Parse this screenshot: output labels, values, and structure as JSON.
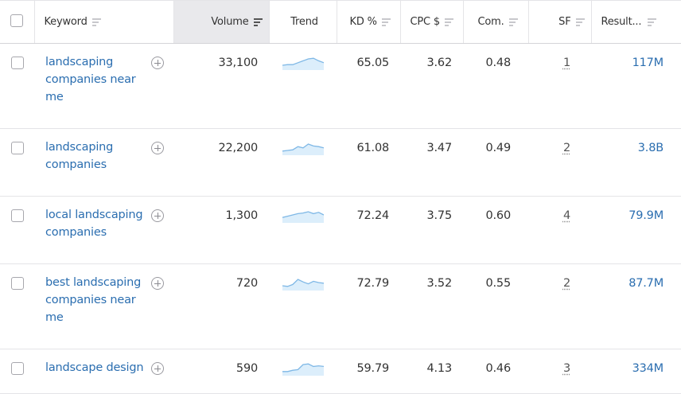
{
  "columns": {
    "keyword": "Keyword",
    "volume": "Volume",
    "trend": "Trend",
    "kd": "KD %",
    "cpc": "CPC $",
    "com": "Com.",
    "sf": "SF",
    "results": "Result..."
  },
  "rows": [
    {
      "keyword": "landscaping companies near me",
      "volume": "33,100",
      "kd": "65.05",
      "cpc": "3.62",
      "com": "0.48",
      "sf": "1",
      "results": "117M",
      "trend": [
        0.25,
        0.3,
        0.3,
        0.45,
        0.6,
        0.75,
        0.8,
        0.6,
        0.45
      ]
    },
    {
      "keyword": "landscaping companies",
      "volume": "22,200",
      "kd": "61.08",
      "cpc": "3.47",
      "com": "0.49",
      "sf": "2",
      "results": "3.8B",
      "trend": [
        0.2,
        0.25,
        0.3,
        0.55,
        0.45,
        0.75,
        0.6,
        0.55,
        0.45
      ]
    },
    {
      "keyword": "local landscaping companies",
      "volume": "1,300",
      "kd": "72.24",
      "cpc": "3.75",
      "com": "0.60",
      "sf": "4",
      "results": "79.9M",
      "trend": [
        0.3,
        0.4,
        0.5,
        0.6,
        0.65,
        0.75,
        0.6,
        0.7,
        0.5
      ]
    },
    {
      "keyword": "best landscaping companies near me",
      "volume": "720",
      "kd": "72.79",
      "cpc": "3.52",
      "com": "0.55",
      "sf": "2",
      "results": "87.7M",
      "trend": [
        0.25,
        0.2,
        0.35,
        0.75,
        0.55,
        0.4,
        0.6,
        0.5,
        0.45
      ]
    },
    {
      "keyword": "landscape design",
      "volume": "590",
      "kd": "59.79",
      "cpc": "4.13",
      "com": "0.46",
      "sf": "3",
      "results": "334M",
      "trend": [
        0.2,
        0.2,
        0.3,
        0.35,
        0.75,
        0.8,
        0.6,
        0.65,
        0.6
      ]
    }
  ],
  "colors": {
    "link": "#2b6eb0",
    "trend_line": "#7fb8e6",
    "trend_fill": "#dceefb"
  }
}
